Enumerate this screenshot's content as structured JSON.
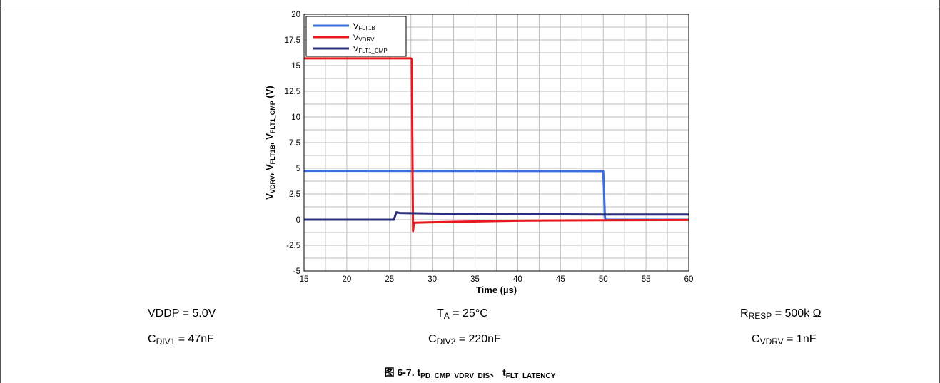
{
  "chart_data": {
    "type": "line",
    "xlabel_parts": {
      "main": "Time (",
      "mu": "µ",
      "rest": "s)"
    },
    "ylabel_parts": [
      {
        "base": "V",
        "sub": "VDRV",
        "sep": ", "
      },
      {
        "base": "V",
        "sub": "FLT1B",
        "sep": ", "
      },
      {
        "base": "V",
        "sub": "FLT1_CMP",
        "sep": " (V)"
      }
    ],
    "xlim": [
      15,
      60
    ],
    "ylim": [
      -5,
      20
    ],
    "x_ticks": [
      "15",
      "20",
      "25",
      "30",
      "35",
      "40",
      "45",
      "50",
      "55",
      "60"
    ],
    "x_tick_values": [
      15,
      20,
      25,
      30,
      35,
      40,
      45,
      50,
      55,
      60
    ],
    "y_ticks": [
      "20",
      "17.5",
      "15",
      "12.5",
      "10",
      "7.5",
      "5",
      "2.5",
      "0",
      "-2.5",
      "-5"
    ],
    "y_tick_values": [
      20,
      17.5,
      15,
      12.5,
      10,
      7.5,
      5,
      2.5,
      0,
      -2.5,
      -5
    ],
    "grid": true,
    "legend_position": "top-left",
    "series": [
      {
        "name_base": "V",
        "name_sub": "FLT1B",
        "color": "#3a6fe0",
        "points": [
          [
            15,
            4.75
          ],
          [
            50,
            4.72
          ],
          [
            50.1,
            2.5
          ],
          [
            50.2,
            0.2
          ],
          [
            50.3,
            0.0
          ],
          [
            60,
            0.0
          ]
        ]
      },
      {
        "name_base": "V",
        "name_sub": "VDRV",
        "color": "#e8191e",
        "points": [
          [
            15,
            15.7
          ],
          [
            27.5,
            15.7
          ],
          [
            27.6,
            15.6
          ],
          [
            27.75,
            -1.1
          ],
          [
            27.85,
            -0.3
          ],
          [
            30,
            -0.25
          ],
          [
            40,
            -0.1
          ],
          [
            50,
            -0.05
          ],
          [
            60,
            -0.03
          ]
        ]
      },
      {
        "name_base": "V",
        "name_sub": "FLT1_CMP",
        "color": "#2b2f7c",
        "points": [
          [
            15,
            0.0
          ],
          [
            25.5,
            0.0
          ],
          [
            25.8,
            0.72
          ],
          [
            26.2,
            0.65
          ],
          [
            30,
            0.6
          ],
          [
            40,
            0.55
          ],
          [
            50,
            0.5
          ],
          [
            60,
            0.5
          ]
        ]
      }
    ]
  },
  "conditions": {
    "vddp": {
      "pre": "VDDP = 5.0V"
    },
    "cdiv1": {
      "base": "C",
      "sub": "DIV1",
      "post": " = 47nF"
    },
    "ta": {
      "base": "T",
      "sub": "A",
      "post": " = 25°C"
    },
    "cdiv2": {
      "base": "C",
      "sub": "DIV2",
      "post": " = 220nF"
    },
    "rresp": {
      "base": "R",
      "sub": "RESP",
      "post": " = 500k Ω"
    },
    "cvdrv": {
      "base": "C",
      "sub": "VDRV",
      "post": " = 1nF"
    }
  },
  "caption": {
    "prefix": "图 6-7. t",
    "sub1": "PD_CMP_VDRV_DIS",
    "mid": "、 t",
    "sub2": "FLT_LATENCY"
  }
}
